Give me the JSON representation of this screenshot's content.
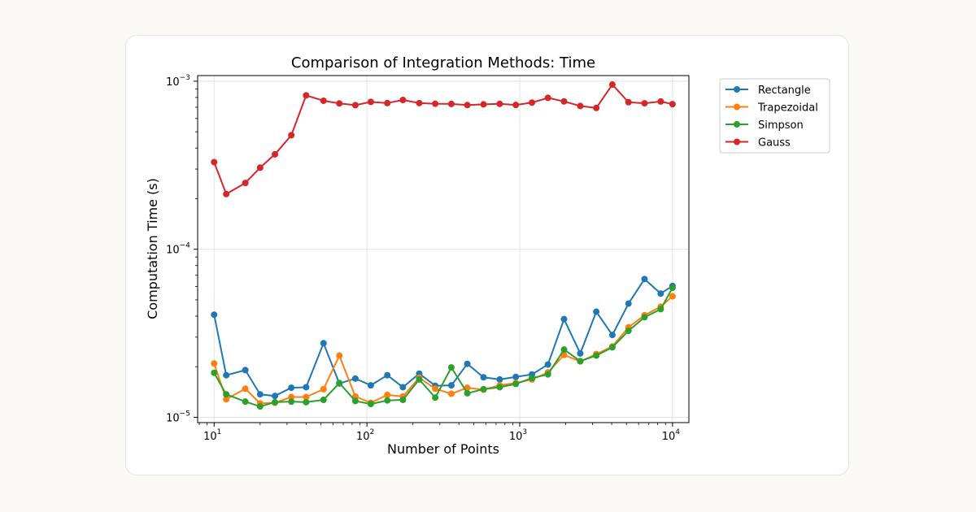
{
  "chart_data": {
    "type": "line",
    "title": "Comparison of Integration Methods: Time",
    "xlabel": "Number of Points",
    "ylabel": "Computation Time (s)",
    "xscale": "log",
    "yscale": "log",
    "xlim": [
      7.8,
      12800
    ],
    "ylim": [
      9.3e-06,
      0.00108
    ],
    "grid": true,
    "legend_position": "outside-top-right",
    "x_ticks": [
      {
        "value": 10,
        "base": "10",
        "exp": "1"
      },
      {
        "value": 100,
        "base": "10",
        "exp": "2"
      },
      {
        "value": 1000,
        "base": "10",
        "exp": "3"
      },
      {
        "value": 10000,
        "base": "10",
        "exp": "4"
      }
    ],
    "y_ticks": [
      {
        "value": 1e-05,
        "base": "10",
        "exp": "−5"
      },
      {
        "value": 0.0001,
        "base": "10",
        "exp": "−4"
      },
      {
        "value": 0.001,
        "base": "10",
        "exp": "−3"
      }
    ],
    "x": [
      10,
      12,
      16,
      20,
      25,
      32,
      40,
      52,
      66,
      84,
      106,
      136,
      172,
      220,
      280,
      357,
      454,
      580,
      740,
      943,
      1202,
      1530,
      1950,
      2490,
      3170,
      4040,
      5150,
      6560,
      8370,
      10000
    ],
    "series": [
      {
        "name": "Rectangle",
        "color": "#1f77b4",
        "values": [
          4.08e-05,
          1.78e-05,
          1.91e-05,
          1.37e-05,
          1.34e-05,
          1.5e-05,
          1.51e-05,
          2.76e-05,
          1.59e-05,
          1.7e-05,
          1.55e-05,
          1.78e-05,
          1.51e-05,
          1.82e-05,
          1.54e-05,
          1.55e-05,
          2.08e-05,
          1.73e-05,
          1.68e-05,
          1.74e-05,
          1.8e-05,
          2.06e-05,
          3.84e-05,
          2.4e-05,
          4.25e-05,
          3.09e-05,
          4.75e-05,
          6.65e-05,
          5.45e-05,
          6.05e-05
        ]
      },
      {
        "name": "Trapezoidal",
        "color": "#ff7f0e",
        "values": [
          2.09e-05,
          1.28e-05,
          1.48e-05,
          1.21e-05,
          1.22e-05,
          1.32e-05,
          1.32e-05,
          1.47e-05,
          2.33e-05,
          1.33e-05,
          1.22e-05,
          1.36e-05,
          1.33e-05,
          1.72e-05,
          1.48e-05,
          1.38e-05,
          1.5e-05,
          1.46e-05,
          1.55e-05,
          1.6e-05,
          1.68e-05,
          1.85e-05,
          2.35e-05,
          2.15e-05,
          2.38e-05,
          2.64e-05,
          3.43e-05,
          4.05e-05,
          4.55e-05,
          5.25e-05
        ]
      },
      {
        "name": "Simpson",
        "color": "#2ca02c",
        "values": [
          1.84e-05,
          1.37e-05,
          1.24e-05,
          1.16e-05,
          1.23e-05,
          1.24e-05,
          1.23e-05,
          1.27e-05,
          1.6e-05,
          1.25e-05,
          1.2e-05,
          1.26e-05,
          1.27e-05,
          1.68e-05,
          1.31e-05,
          1.98e-05,
          1.39e-05,
          1.47e-05,
          1.51e-05,
          1.58e-05,
          1.71e-05,
          1.8e-05,
          2.53e-05,
          2.16e-05,
          2.33e-05,
          2.61e-05,
          3.27e-05,
          3.94e-05,
          4.4e-05,
          5.9e-05
        ]
      },
      {
        "name": "Gauss",
        "color": "#d62728",
        "values": [
          0.00033,
          0.000213,
          0.000248,
          0.000306,
          0.000367,
          0.000477,
          0.000823,
          0.000765,
          0.000738,
          0.00072,
          0.000753,
          0.000741,
          0.000773,
          0.000741,
          0.000734,
          0.000732,
          0.000721,
          0.000728,
          0.000733,
          0.000722,
          0.000746,
          0.000796,
          0.000758,
          0.000712,
          0.000693,
          0.000955,
          0.00075,
          0.000739,
          0.000757,
          0.00073
        ]
      }
    ]
  }
}
